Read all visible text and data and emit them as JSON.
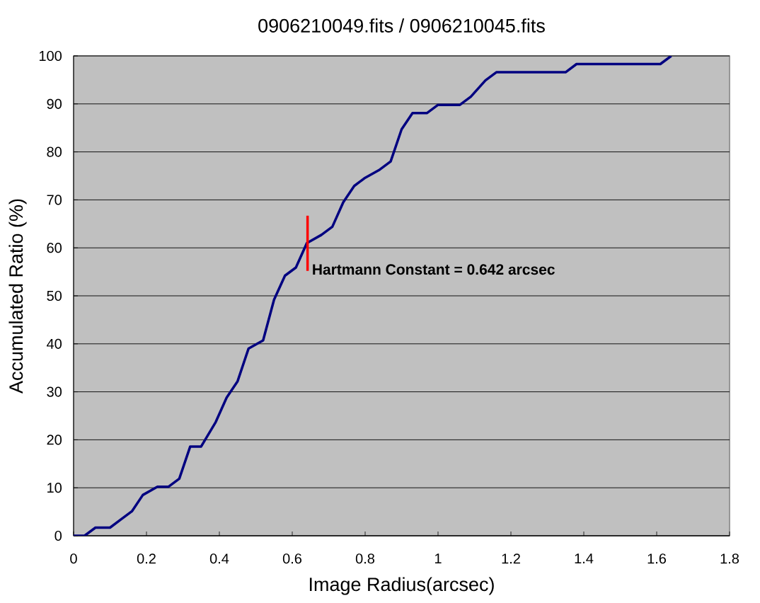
{
  "chart_data": {
    "type": "line",
    "title": "0906210049.fits / 0906210045.fits",
    "xlabel": "Image Radius(arcsec)",
    "ylabel": "Accumulated Ratio (%)",
    "annotations": [
      {
        "text": "**Hartmann Constant = 0.642 arcsec**",
        "x": 0.642,
        "y": 55.5
      }
    ],
    "series": [
      {
        "color": "#000080",
        "x": [
          0,
          0.03,
          0.06,
          0.1,
          0.13,
          0.16,
          0.19,
          0.23,
          0.26,
          0.29,
          0.32,
          0.35,
          0.39,
          0.42,
          0.45,
          0.48,
          0.52,
          0.55,
          0.58,
          0.61,
          0.64,
          0.68,
          0.71,
          0.74,
          0.77,
          0.8,
          0.84,
          0.87,
          0.9,
          0.93,
          0.97,
          1.0,
          1.06,
          1.09,
          1.13,
          1.16,
          1.35,
          1.38,
          1.61,
          1.64
        ],
        "values": [
          0,
          0,
          1.7,
          1.7,
          3.4,
          5.1,
          8.5,
          10.2,
          10.2,
          11.9,
          18.6,
          18.6,
          23.7,
          28.8,
          32.2,
          39.0,
          40.7,
          49.2,
          54.2,
          55.9,
          61.0,
          62.7,
          64.4,
          69.5,
          72.9,
          74.6,
          76.3,
          78.0,
          84.7,
          88.1,
          88.1,
          89.8,
          89.8,
          91.5,
          94.9,
          96.6,
          96.6,
          98.3,
          98.3,
          100
        ]
      },
      {
        "type": "line",
        "color": "#ff0000",
        "x": [
          0.642,
          0.642
        ],
        "values": [
          55.2,
          66.7
        ]
      }
    ],
    "xlim": [
      0,
      1.8
    ],
    "ylim": [
      0,
      100
    ],
    "xticks": [
      0,
      0.2,
      0.4,
      0.6,
      0.8,
      1,
      1.2,
      1.4,
      1.6,
      1.8
    ],
    "yticks": [
      0,
      10,
      20,
      30,
      40,
      50,
      60,
      70,
      80,
      90,
      100
    ],
    "grid": "y",
    "marker": "none"
  }
}
